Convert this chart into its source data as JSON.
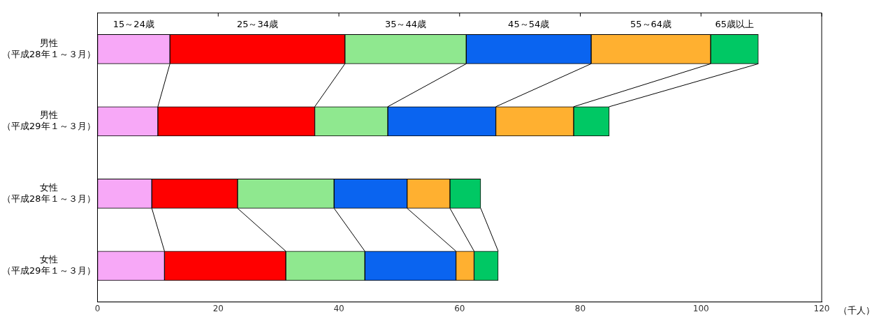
{
  "chart_data": {
    "type": "bar",
    "orientation": "horizontal",
    "stacked": true,
    "categories": [
      "男性（平成28年１～３月）",
      "男性（平成29年１～３月）",
      "女性（平成28年１～３月）",
      "女性（平成29年１～３月）"
    ],
    "series": [
      {
        "name": "15～24歳",
        "color": "#f7a8f7",
        "values": [
          12.0,
          10.0,
          9.0,
          11.1
        ]
      },
      {
        "name": "25～34歳",
        "color": "#ff0000",
        "values": [
          29.0,
          26.0,
          14.2,
          20.1
        ]
      },
      {
        "name": "35～44歳",
        "color": "#8fe88f",
        "values": [
          20.1,
          12.1,
          16.0,
          13.1
        ]
      },
      {
        "name": "45～54歳",
        "color": "#0a64f0",
        "values": [
          20.7,
          17.9,
          12.1,
          15.1
        ]
      },
      {
        "name": "55～64歳",
        "color": "#ffb030",
        "values": [
          19.8,
          12.9,
          7.1,
          3.0
        ]
      },
      {
        "name": "65歳以上",
        "color": "#00c864",
        "values": [
          7.9,
          5.9,
          5.1,
          4.0
        ]
      }
    ],
    "xlim": [
      0,
      120
    ],
    "xticks": [
      0,
      20,
      40,
      60,
      80,
      100,
      120
    ],
    "xlabel": "（千人）",
    "grid": false,
    "legend": false
  }
}
